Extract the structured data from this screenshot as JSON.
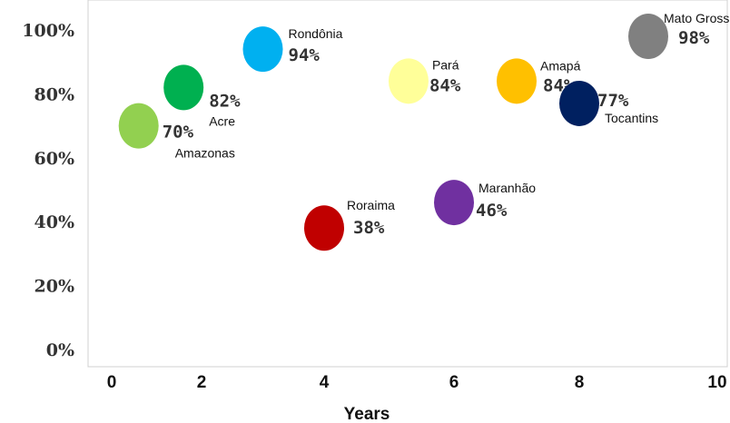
{
  "chart_data": {
    "type": "scatter",
    "xlabel": "Years",
    "ylabel": "",
    "xlim": [
      0,
      10
    ],
    "ylim": [
      0,
      100
    ],
    "x_ticks": [
      {
        "value": 0,
        "label": "0"
      },
      {
        "value": 2,
        "label": "2"
      },
      {
        "value": 4,
        "label": "4"
      },
      {
        "value": 6,
        "label": "6"
      },
      {
        "value": 8,
        "label": "8"
      },
      {
        "value": 10,
        "label": "10"
      }
    ],
    "y_ticks": [
      {
        "value": 0,
        "label": "0%"
      },
      {
        "value": 20,
        "label": "20%"
      },
      {
        "value": 40,
        "label": "40%"
      },
      {
        "value": 60,
        "label": "60%"
      },
      {
        "value": 80,
        "label": "80%"
      },
      {
        "value": 100,
        "label": "100%"
      }
    ],
    "grid": false,
    "points": [
      {
        "name": "Amazonas",
        "x": 0.6,
        "y": 70,
        "label": "70%",
        "color": "#92D050"
      },
      {
        "name": "Acre",
        "x": 1.6,
        "y": 82,
        "label": "82%",
        "color": "#00B050"
      },
      {
        "name": "Rondônia",
        "x": 3.0,
        "y": 94,
        "label": "94%",
        "color": "#00B0F0"
      },
      {
        "name": "Roraima",
        "x": 4.0,
        "y": 38,
        "label": "38%",
        "color": "#C00000"
      },
      {
        "name": "Pará",
        "x": 5.3,
        "y": 84,
        "label": "84%",
        "color": "#FFFF99"
      },
      {
        "name": "Maranhão",
        "x": 6.0,
        "y": 46,
        "label": "46%",
        "color": "#7030A0"
      },
      {
        "name": "Amapá",
        "x": 7.0,
        "y": 84,
        "label": "84%",
        "color": "#FFC000"
      },
      {
        "name": "Tocantins",
        "x": 8.0,
        "y": 77,
        "label": "77%",
        "color": "#002060"
      },
      {
        "name": "Mato Grosso",
        "x": 9.0,
        "y": 98,
        "label": "98%",
        "color": "#808080"
      }
    ]
  }
}
